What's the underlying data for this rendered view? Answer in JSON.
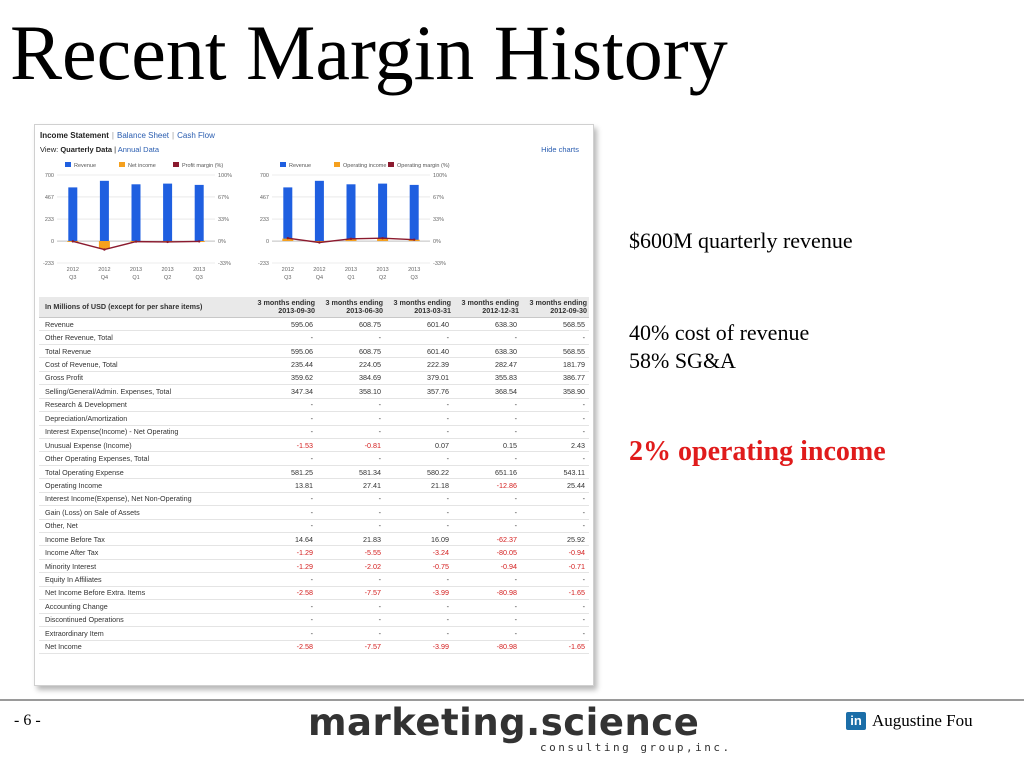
{
  "slide": {
    "title": "Recent Margin History",
    "page_number": "- 6 -",
    "brand_main": "marketing.science",
    "brand_sub": "consulting group,inc.",
    "author": "Augustine Fou",
    "author_icon": "linkedin-icon"
  },
  "panel": {
    "tabs": [
      "Income Statement",
      "Balance Sheet",
      "Cash Flow"
    ],
    "view_label": "View:",
    "view_active": "Quarterly Data",
    "view_sep": "|",
    "view_other": "Annual Data",
    "hide_charts": "Hide charts"
  },
  "notes": [
    "$600M quarterly revenue",
    "40% cost of revenue",
    "58% SG&A",
    "2% operating income"
  ],
  "colors": {
    "revenue": "#1f5fe0",
    "income": "#f5a01e",
    "margin": "#8b1a2e",
    "negative": "#d42020",
    "highlight": "#e01b1b"
  },
  "chart_data": [
    {
      "type": "bar",
      "categories": [
        "2012 Q3",
        "2012 Q4",
        "2013 Q1",
        "2013 Q2",
        "2013 Q3"
      ],
      "x_labels_top": [
        "2012",
        "2012",
        "2013",
        "2013",
        "2013"
      ],
      "x_labels_bottom": [
        "Q3",
        "Q4",
        "Q1",
        "Q2",
        "Q3"
      ],
      "legend": [
        "Revenue",
        "Net income",
        "Profit margin (%)"
      ],
      "left_ticks": [
        "700",
        "467",
        "233",
        "0",
        "-233"
      ],
      "right_ticks": [
        "100%",
        "67%",
        "33%",
        "0%",
        "-33%"
      ],
      "ylim": [
        -233,
        700
      ],
      "y2lim": [
        -33,
        100
      ],
      "series": [
        {
          "name": "Revenue",
          "kind": "bar",
          "values": [
            568.55,
            638.3,
            601.4,
            608.75,
            595.06
          ]
        },
        {
          "name": "Net income",
          "kind": "bar",
          "values": [
            -1.65,
            -80.98,
            -3.99,
            -7.57,
            -2.58
          ]
        },
        {
          "name": "Profit margin (%)",
          "kind": "line",
          "values": [
            -0.3,
            -12.7,
            -0.7,
            -1.2,
            -0.4
          ]
        }
      ]
    },
    {
      "type": "bar",
      "categories": [
        "2012 Q3",
        "2012 Q4",
        "2013 Q1",
        "2013 Q2",
        "2013 Q3"
      ],
      "x_labels_top": [
        "2012",
        "2012",
        "2013",
        "2013",
        "2013"
      ],
      "x_labels_bottom": [
        "Q3",
        "Q4",
        "Q1",
        "Q2",
        "Q3"
      ],
      "legend": [
        "Revenue",
        "Operating income",
        "Operating margin (%)"
      ],
      "left_ticks": [
        "700",
        "467",
        "233",
        "0",
        "-233"
      ],
      "right_ticks": [
        "100%",
        "67%",
        "33%",
        "0%",
        "-33%"
      ],
      "ylim": [
        -233,
        700
      ],
      "y2lim": [
        -33,
        100
      ],
      "series": [
        {
          "name": "Revenue",
          "kind": "bar",
          "values": [
            568.55,
            638.3,
            601.4,
            608.75,
            595.06
          ]
        },
        {
          "name": "Operating income",
          "kind": "bar",
          "values": [
            25.44,
            -12.86,
            21.18,
            27.41,
            13.81
          ]
        },
        {
          "name": "Operating margin (%)",
          "kind": "line",
          "values": [
            4.5,
            -2.0,
            3.5,
            4.5,
            2.3
          ]
        }
      ]
    }
  ],
  "table": {
    "label_header": "In Millions of USD (except for per share items)",
    "columns": [
      "3 months ending 2013-09-30",
      "3 months ending 2013-06-30",
      "3 months ending 2013-03-31",
      "3 months ending 2012-12-31",
      "3 months ending 2012-09-30"
    ],
    "rows": [
      {
        "label": "Revenue",
        "values": [
          "595.06",
          "608.75",
          "601.40",
          "638.30",
          "568.55"
        ]
      },
      {
        "label": "Other Revenue, Total",
        "values": [
          "-",
          "-",
          "-",
          "-",
          "-"
        ]
      },
      {
        "label": "Total Revenue",
        "values": [
          "595.06",
          "608.75",
          "601.40",
          "638.30",
          "568.55"
        ]
      },
      {
        "label": "Cost of Revenue, Total",
        "values": [
          "235.44",
          "224.05",
          "222.39",
          "282.47",
          "181.79"
        ]
      },
      {
        "label": "Gross Profit",
        "values": [
          "359.62",
          "384.69",
          "379.01",
          "355.83",
          "386.77"
        ]
      },
      {
        "label": "Selling/General/Admin. Expenses, Total",
        "values": [
          "347.34",
          "358.10",
          "357.76",
          "368.54",
          "358.90"
        ]
      },
      {
        "label": "Research & Development",
        "values": [
          "-",
          "-",
          "-",
          "-",
          "-"
        ]
      },
      {
        "label": "Depreciation/Amortization",
        "values": [
          "-",
          "-",
          "-",
          "-",
          "-"
        ]
      },
      {
        "label": "Interest Expense(Income) - Net Operating",
        "values": [
          "-",
          "-",
          "-",
          "-",
          "-"
        ]
      },
      {
        "label": "Unusual Expense (Income)",
        "values": [
          "-1.53",
          "-0.81",
          "0.07",
          "0.15",
          "2.43"
        ]
      },
      {
        "label": "Other Operating Expenses, Total",
        "values": [
          "-",
          "-",
          "-",
          "-",
          "-"
        ]
      },
      {
        "label": "Total Operating Expense",
        "values": [
          "581.25",
          "581.34",
          "580.22",
          "651.16",
          "543.11"
        ]
      },
      {
        "label": "Operating Income",
        "values": [
          "13.81",
          "27.41",
          "21.18",
          "-12.86",
          "25.44"
        ]
      },
      {
        "label": "Interest Income(Expense), Net Non-Operating",
        "values": [
          "-",
          "-",
          "-",
          "-",
          "-"
        ]
      },
      {
        "label": "Gain (Loss) on Sale of Assets",
        "values": [
          "-",
          "-",
          "-",
          "-",
          "-"
        ]
      },
      {
        "label": "Other, Net",
        "values": [
          "-",
          "-",
          "-",
          "-",
          "-"
        ]
      },
      {
        "label": "Income Before Tax",
        "values": [
          "14.64",
          "21.83",
          "16.09",
          "-62.37",
          "25.92"
        ]
      },
      {
        "label": "Income After Tax",
        "values": [
          "-1.29",
          "-5.55",
          "-3.24",
          "-80.05",
          "-0.94"
        ]
      },
      {
        "label": "Minority Interest",
        "values": [
          "-1.29",
          "-2.02",
          "-0.75",
          "-0.94",
          "-0.71"
        ]
      },
      {
        "label": "Equity In Affiliates",
        "values": [
          "-",
          "-",
          "-",
          "-",
          "-"
        ]
      },
      {
        "label": "Net Income Before Extra. Items",
        "values": [
          "-2.58",
          "-7.57",
          "-3.99",
          "-80.98",
          "-1.65"
        ]
      },
      {
        "label": "Accounting Change",
        "values": [
          "-",
          "-",
          "-",
          "-",
          "-"
        ]
      },
      {
        "label": "Discontinued Operations",
        "values": [
          "-",
          "-",
          "-",
          "-",
          "-"
        ]
      },
      {
        "label": "Extraordinary Item",
        "values": [
          "-",
          "-",
          "-",
          "-",
          "-"
        ]
      },
      {
        "label": "Net Income",
        "values": [
          "-2.58",
          "-7.57",
          "-3.99",
          "-80.98",
          "-1.65"
        ]
      }
    ]
  }
}
